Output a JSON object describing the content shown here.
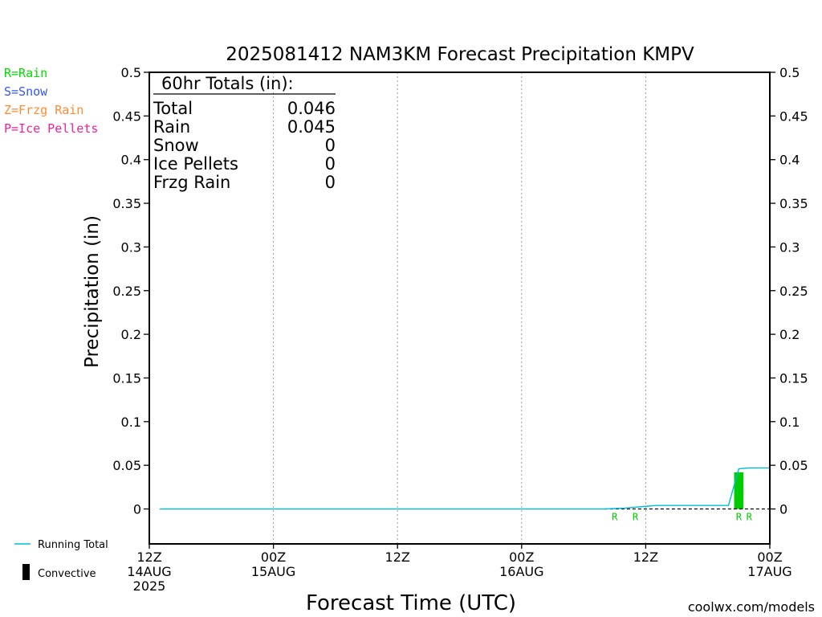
{
  "chart_data": {
    "type": "bar",
    "title": "2025081412 NAM3KM Forecast Precipitation KMPV",
    "xlabel": "Forecast Time (UTC)",
    "ylabel": "Precipitation (in)",
    "ylim": [
      -0.04,
      0.5
    ],
    "y_ticks": [
      "0.5",
      "0.45",
      "0.4",
      "0.35",
      "0.3",
      "0.25",
      "0.2",
      "0.15",
      "0.1",
      "0.05",
      "0"
    ],
    "xlim_hours": [
      0,
      60
    ],
    "x_ticks": [
      {
        "hour": 0,
        "line1": "12Z",
        "line2": "14AUG",
        "line3": "2025"
      },
      {
        "hour": 12,
        "line1": "00Z",
        "line2": "15AUG",
        "line3": ""
      },
      {
        "hour": 24,
        "line1": "12Z",
        "line2": "",
        "line3": ""
      },
      {
        "hour": 36,
        "line1": "00Z",
        "line2": "16AUG",
        "line3": ""
      },
      {
        "hour": 48,
        "line1": "12Z",
        "line2": "",
        "line3": ""
      },
      {
        "hour": 60,
        "line1": "00Z",
        "line2": "17AUG",
        "line3": ""
      }
    ],
    "bars": [
      {
        "hour": 57,
        "value": 0.042,
        "ptype": "rain",
        "color": "#00cc00"
      }
    ],
    "running_total": {
      "color": "#00bcd4",
      "x_hours": [
        1,
        44,
        46,
        47,
        48,
        49,
        50,
        51,
        52,
        53,
        54,
        55,
        56,
        57,
        58,
        59,
        60
      ],
      "y_values": [
        0,
        0,
        0.001,
        0.002,
        0.003,
        0.004,
        0.004,
        0.004,
        0.004,
        0.004,
        0.004,
        0.004,
        0.004,
        0.046,
        0.047,
        0.047,
        0.047
      ]
    },
    "ptype_markers": [
      {
        "hour": 45,
        "label": "R"
      },
      {
        "hour": 47,
        "label": "R"
      },
      {
        "hour": 57,
        "label": "R"
      },
      {
        "hour": 58,
        "label": "R"
      }
    ],
    "legend_ptypes": [
      {
        "label": "R=Rain",
        "color": "#00dd00"
      },
      {
        "label": "S=Snow",
        "color": "#3355ff"
      },
      {
        "label": "Z=Frzg Rain",
        "color": "#ff8c33"
      },
      {
        "label": "P=Ice Pellets",
        "color": "#ee2299"
      }
    ],
    "legend_bottom": [
      {
        "label": "Running Total",
        "color": "#00bcd4"
      },
      {
        "label": "Convective",
        "color": "#000000"
      }
    ],
    "totals": {
      "header": "60hr Totals (in):",
      "rows": [
        {
          "label": "Total",
          "value": "0.046"
        },
        {
          "label": "Rain",
          "value": "0.045"
        },
        {
          "label": "Snow",
          "value": "0"
        },
        {
          "label": "Ice Pellets",
          "value": "0"
        },
        {
          "label": "Frzg Rain",
          "value": "0"
        }
      ]
    },
    "credit": "coolwx.com/models",
    "credit_color": "#dd2222",
    "ptype_marker_color": "#00cc00"
  }
}
